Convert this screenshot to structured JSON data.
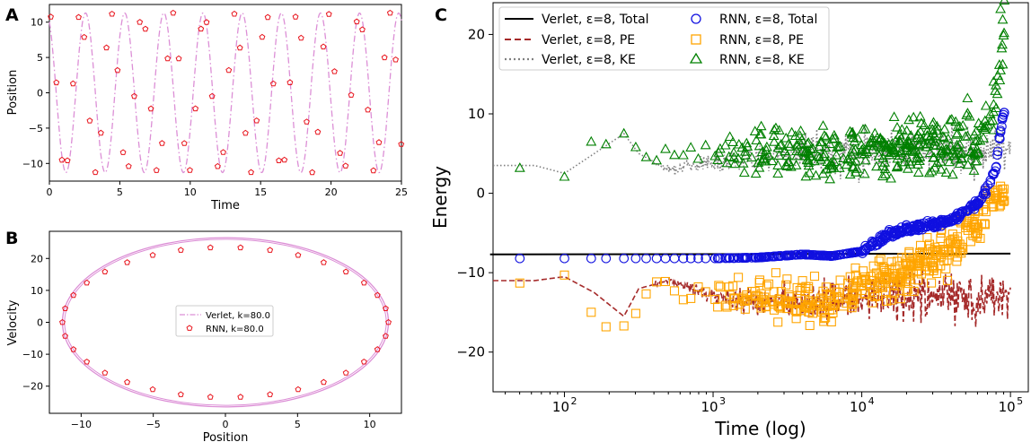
{
  "panels": {
    "A": {
      "label": "A",
      "xlabel": "Time",
      "ylabel": "Position",
      "xlim": [
        0,
        25
      ],
      "ylim": [
        -12.5,
        12.5
      ],
      "xticks": [
        0,
        5,
        10,
        15,
        20,
        25
      ],
      "yticks": [
        -10,
        -5,
        0,
        5,
        10
      ]
    },
    "B": {
      "label": "B",
      "xlabel": "Position",
      "ylabel": "Velocity",
      "xlim": [
        -12.2,
        12.2
      ],
      "ylim": [
        -28.5,
        28.5
      ],
      "xticks": [
        -10,
        -5,
        0,
        5,
        10
      ],
      "yticks": [
        -20,
        -10,
        0,
        10,
        20
      ],
      "legend": [
        "Verlet, k=80.0",
        "RNN, k=80.0"
      ]
    },
    "C": {
      "label": "C",
      "xlabel": "Time (log)",
      "ylabel": "Energy",
      "xlim_log10": [
        1.52,
        5.12
      ],
      "ylim": [
        -25,
        24
      ],
      "xticks": [
        {
          "base": "10",
          "exp": "2",
          "v": 2
        },
        {
          "base": "10",
          "exp": "3",
          "v": 3
        },
        {
          "base": "10",
          "exp": "4",
          "v": 4
        },
        {
          "base": "10",
          "exp": "5",
          "v": 5
        }
      ],
      "yticks": [
        -20,
        -10,
        0,
        10,
        20
      ],
      "legend_left": [
        "Verlet, ε=8, Total",
        "Verlet, ε=8, PE",
        "Verlet, ε=8, KE"
      ],
      "legend_right": [
        "RNN, ε=8, Total",
        "RNN, ε=8, PE",
        "RNN, ε=8, KE"
      ]
    }
  },
  "colors": {
    "verlet_ab": "#dc8fd6",
    "rnn_ab": "#e8141c",
    "total": "#000000",
    "pe": "#a52a2a",
    "ke": "#808080",
    "rnn_total": "#1010e0",
    "rnn_pe": "#ffa500",
    "rnn_ke": "#008000"
  },
  "chart_data": [
    {
      "type": "line",
      "panel": "A",
      "xlabel": "Time",
      "ylabel": "Position",
      "series": [
        {
          "style": "dash-dot line",
          "amplitude": 11.3,
          "period": 2.78
        },
        {
          "style": "pentagon markers",
          "amplitude": 11.3,
          "period": 2.78
        }
      ]
    },
    {
      "type": "scatter",
      "panel": "B",
      "xlabel": "Position",
      "ylabel": "Velocity",
      "series": [
        {
          "name": "Verlet, k=80.0",
          "x_amplitude": 11.3,
          "y_amplitude": 26.5
        },
        {
          "name": "RNN, k=80.0",
          "x_amplitude": 11.3,
          "y_amplitude": 23.5
        }
      ]
    },
    {
      "type": "scatter",
      "panel": "C",
      "xlabel": "Time (log)",
      "ylabel": "Energy",
      "series": [
        {
          "name": "Verlet, ε=8, Total",
          "log10_x": [
            1.5,
            5.0
          ],
          "y": [
            -7.7,
            -7.6
          ]
        },
        {
          "name": "Verlet, ε=8, PE",
          "log10_x": [
            1.5,
            1.8,
            2.0,
            2.2,
            2.4,
            2.5,
            2.7,
            3.0,
            3.5,
            4.0,
            4.5,
            5.0
          ],
          "y": [
            -11,
            -11,
            -10.5,
            -12.5,
            -15.5,
            -12,
            -11,
            -13,
            -14,
            -13,
            -13,
            -13
          ]
        },
        {
          "name": "Verlet, ε=8, KE",
          "log10_x": [
            1.5,
            1.8,
            2.0,
            2.2,
            2.4,
            2.5,
            2.7,
            3.0,
            3.5,
            4.0,
            4.5,
            5.0
          ],
          "y": [
            3.5,
            3.5,
            2.5,
            5,
            7.5,
            5,
            3,
            4,
            5,
            5.5,
            5.5,
            5.5
          ]
        },
        {
          "name": "RNN, ε=8, Total",
          "log10_x": [
            1.7,
            2.0,
            2.5,
            3.0,
            3.3,
            3.6,
            3.8,
            4.0,
            4.2,
            4.4,
            4.6,
            4.8,
            4.9,
            4.95
          ],
          "y": [
            -8.2,
            -8.2,
            -8.2,
            -8.2,
            -8.1,
            -7.7,
            -7.9,
            -7.3,
            -5.0,
            -4.2,
            -3.5,
            -1.0,
            3.0,
            10.0
          ]
        },
        {
          "name": "RNN, ε=8, PE",
          "log10_x": [
            1.7,
            2.0,
            2.2,
            2.4,
            2.6,
            2.8,
            3.0,
            3.4,
            3.8,
            4.0,
            4.3,
            4.6,
            4.8,
            4.9,
            5.0
          ],
          "y": [
            -11.3,
            -10.3,
            -15.5,
            -15.9,
            -11,
            -13,
            -13,
            -13,
            -14,
            -12,
            -10,
            -7,
            -3,
            0,
            0
          ]
        },
        {
          "name": "RNN, ε=8, KE",
          "log10_x": [
            1.7,
            2.0,
            2.2,
            2.4,
            2.6,
            2.8,
            3.0,
            3.4,
            3.8,
            4.0,
            4.3,
            4.6,
            4.8,
            4.9,
            4.95
          ],
          "y": [
            3.2,
            2.1,
            7,
            7.8,
            5,
            4.5,
            5,
            5.5,
            5,
            5.5,
            6,
            6,
            7,
            10,
            22
          ]
        }
      ]
    }
  ]
}
